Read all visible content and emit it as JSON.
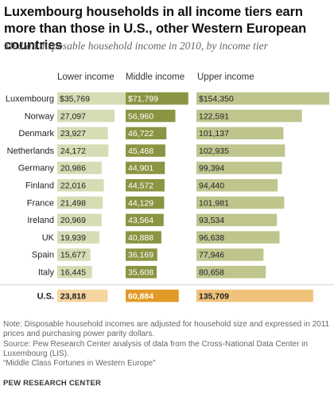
{
  "title": "Luxembourg households in all income tiers earn more than those in U.S., other Western European countries",
  "subtitle": "Median disposable household income in 2010, by income tier",
  "chart_data": {
    "type": "bar",
    "categories": [
      "Luxembourg",
      "Norway",
      "Denmark",
      "Netherlands",
      "Germany",
      "Finland",
      "France",
      "Ireland",
      "UK",
      "Spain",
      "Italy",
      "U.S."
    ],
    "series": [
      {
        "name": "Lower income",
        "labels": [
          "$35,769",
          "27,097",
          "23,927",
          "24,172",
          "20,986",
          "22,016",
          "21,498",
          "20,969",
          "19,939",
          "15,677",
          "16,445",
          "23,818"
        ],
        "values": [
          35769,
          27097,
          23927,
          24172,
          20986,
          22016,
          21498,
          20969,
          19939,
          15677,
          16445,
          23818
        ]
      },
      {
        "name": "Middle income",
        "labels": [
          "$71,799",
          "56,960",
          "46,722",
          "45,468",
          "44,901",
          "44,572",
          "44,129",
          "43,564",
          "40,888",
          "36,169",
          "35,608",
          "60,884"
        ],
        "values": [
          71799,
          56960,
          46722,
          45468,
          44901,
          44572,
          44129,
          43564,
          40888,
          36169,
          35608,
          60884
        ]
      },
      {
        "name": "Upper income",
        "labels": [
          "$154,350",
          "122,591",
          "101,137",
          "102,935",
          "99,394",
          "94,440",
          "101,981",
          "93,534",
          "96,638",
          "77,946",
          "80,658",
          "135,709"
        ],
        "values": [
          154350,
          122591,
          101137,
          102935,
          99394,
          94440,
          101981,
          93534,
          96638,
          77946,
          80658,
          135709
        ]
      }
    ],
    "highlight_category": "U.S.",
    "colors": {
      "lower": "#d6dcb4",
      "middle": "#8b9442",
      "upper": "#bfc58d",
      "us_lower": "#f5d5a0",
      "us_middle": "#e29a26",
      "us_upper": "#f0c27a"
    }
  },
  "notes": [
    "Note: Disposable household incomes are adjusted for household size and expressed in 2011 prices and purchasing power parity dollars.",
    "Source: Pew Research Center analysis of data from the Cross-National Data Center in Luxembourg (LIS).",
    "“Middle Class Fortunes in Western Europe”"
  ],
  "brand": "PEW RESEARCH CENTER"
}
